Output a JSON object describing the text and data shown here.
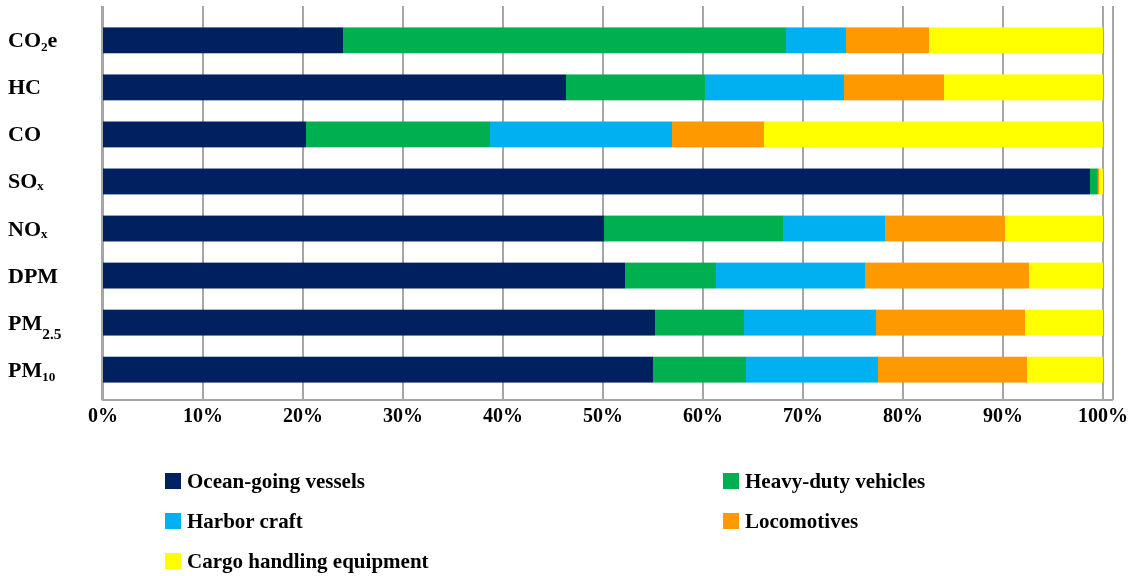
{
  "chart_data": {
    "type": "bar",
    "orientation": "horizontal",
    "stacked": true,
    "categories": [
      "CO₂e",
      "HC",
      "CO",
      "SOₓ",
      "NOₓ",
      "DPM",
      "PM$_{2.5}$",
      "PM₁₀"
    ],
    "series": [
      {
        "name": "Ocean-going vessels",
        "color": "#002060",
        "values": [
          24.0,
          46.3,
          20.3,
          98.7,
          50.1,
          52.2,
          55.2,
          55.0
        ]
      },
      {
        "name": "Heavy-duty vehicles",
        "color": "#00b050",
        "values": [
          44.3,
          13.9,
          18.4,
          0.7,
          17.9,
          9.1,
          8.9,
          9.3
        ]
      },
      {
        "name": "Harbor craft",
        "color": "#00b0f0",
        "values": [
          6.0,
          13.9,
          18.2,
          0.1,
          10.2,
          14.9,
          13.2,
          13.2
        ]
      },
      {
        "name": "Locomotives",
        "color": "#ff9900",
        "values": [
          8.3,
          10.0,
          9.2,
          0.1,
          12.0,
          16.4,
          14.9,
          14.9
        ]
      },
      {
        "name": "Cargo handling equipment",
        "color": "#ffff00",
        "values": [
          17.4,
          15.9,
          33.9,
          0.4,
          9.8,
          7.4,
          7.8,
          7.6
        ]
      }
    ],
    "xlim": [
      0,
      100
    ],
    "xticks": [
      {
        "value": 0,
        "label": "0%"
      },
      {
        "value": 10,
        "label": "10%"
      },
      {
        "value": 20,
        "label": "20%"
      },
      {
        "value": 30,
        "label": "30%"
      },
      {
        "value": 40,
        "label": "40%"
      },
      {
        "value": 50,
        "label": "50%"
      },
      {
        "value": 60,
        "label": "60%"
      },
      {
        "value": 70,
        "label": "70%"
      },
      {
        "value": 80,
        "label": "80%"
      },
      {
        "value": 90,
        "label": "90%"
      },
      {
        "value": 100,
        "label": "100%"
      }
    ],
    "grid": "x",
    "legend": "bottom"
  }
}
